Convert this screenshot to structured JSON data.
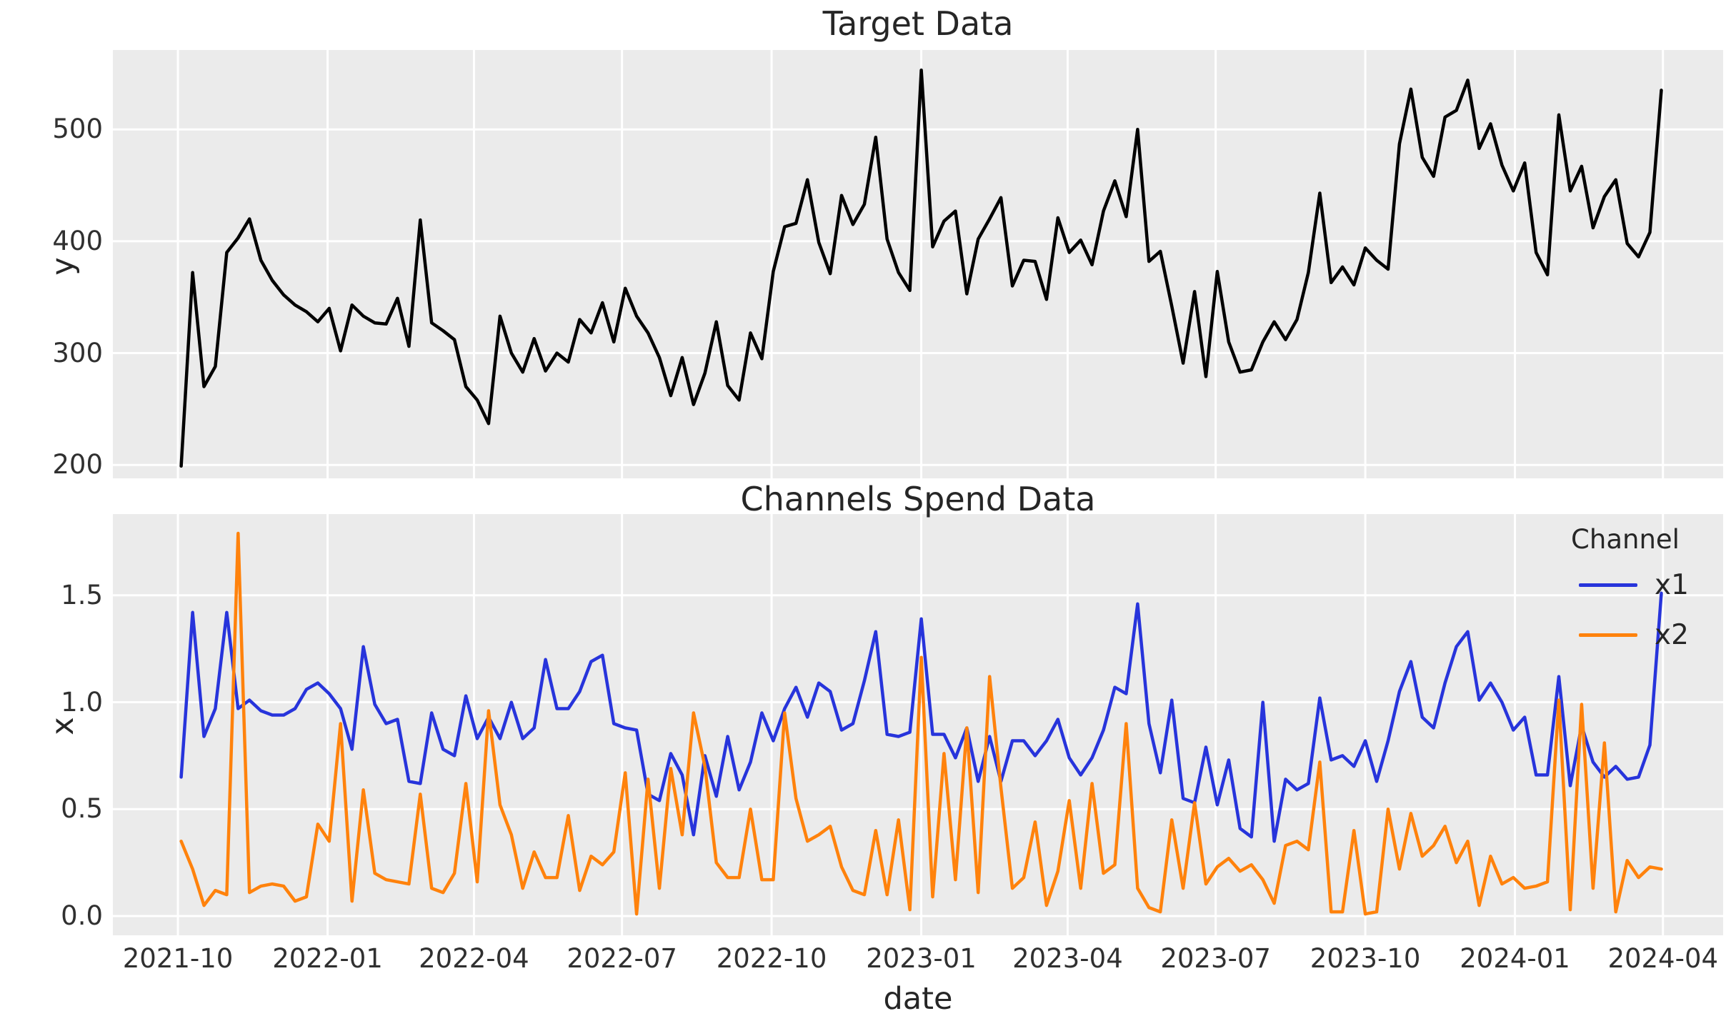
{
  "figure": {
    "background": "#ffffff",
    "plot_background": "#ebebeb",
    "grid_color": "#ffffff",
    "title_color": "#262626",
    "tick_color": "#303030"
  },
  "x_axis": {
    "label": "date",
    "start": "2021-10-03",
    "step_days": 7,
    "n_points": 131,
    "xlim": [
      "2021-08-22",
      "2024-05-08"
    ],
    "ticks": [
      {
        "label": "2021-10",
        "date": "2021-10-01"
      },
      {
        "label": "2022-01",
        "date": "2022-01-01"
      },
      {
        "label": "2022-04",
        "date": "2022-04-01"
      },
      {
        "label": "2022-07",
        "date": "2022-07-01"
      },
      {
        "label": "2022-10",
        "date": "2022-10-01"
      },
      {
        "label": "2023-01",
        "date": "2023-01-01"
      },
      {
        "label": "2023-04",
        "date": "2023-04-01"
      },
      {
        "label": "2023-07",
        "date": "2023-07-01"
      },
      {
        "label": "2023-10",
        "date": "2023-10-01"
      },
      {
        "label": "2024-01",
        "date": "2024-01-01"
      },
      {
        "label": "2024-04",
        "date": "2024-04-01"
      }
    ]
  },
  "chart_data": [
    {
      "type": "line",
      "title": "Target Data",
      "ylabel": "y",
      "xlabel": "date",
      "ylim": [
        188,
        571
      ],
      "yticks": [
        200,
        300,
        400,
        500
      ],
      "ytick_labels": [
        "200",
        "300",
        "400",
        "500"
      ],
      "grid": true,
      "legend": null,
      "x_frequency": "weekly",
      "series": [
        {
          "name": "y",
          "color": "#000000",
          "values": [
            199,
            372,
            270,
            288,
            390,
            403,
            420,
            383,
            365,
            352,
            343,
            337,
            328,
            340,
            302,
            343,
            333,
            327,
            326,
            349,
            306,
            419,
            327,
            320,
            312,
            270,
            258,
            237,
            333,
            300,
            283,
            313,
            284,
            300,
            292,
            330,
            318,
            345,
            310,
            358,
            333,
            318,
            296,
            262,
            296,
            254,
            282,
            328,
            271,
            258,
            318,
            295,
            373,
            413,
            416,
            455,
            399,
            371,
            441,
            415,
            433,
            493,
            402,
            372,
            356,
            553,
            395,
            418,
            427,
            353,
            402,
            420,
            439,
            360,
            383,
            382,
            348,
            421,
            390,
            401,
            379,
            427,
            454,
            422,
            500,
            382,
            391,
            342,
            291,
            355,
            279,
            373,
            310,
            283,
            285,
            310,
            328,
            312,
            330,
            372,
            443,
            363,
            377,
            361,
            394,
            383,
            375,
            487,
            536,
            475,
            458,
            511,
            517,
            544,
            483,
            505,
            468,
            445,
            470,
            390,
            370,
            513,
            445,
            467,
            412,
            440,
            455,
            398,
            386,
            408,
            535
          ]
        }
      ]
    },
    {
      "type": "line",
      "title": "Channels Spend Data",
      "ylabel": "x",
      "xlabel": "date",
      "ylim": [
        -0.09,
        1.88
      ],
      "yticks": [
        0.0,
        0.5,
        1.0,
        1.5
      ],
      "ytick_labels": [
        "0.0",
        "0.5",
        "1.0",
        "1.5"
      ],
      "grid": true,
      "legend": {
        "title": "Channel",
        "position": "upper right"
      },
      "x_frequency": "weekly",
      "series": [
        {
          "name": "x1",
          "color": "#2734db",
          "values": [
            0.65,
            1.42,
            0.84,
            0.97,
            1.42,
            0.97,
            1.01,
            0.96,
            0.94,
            0.94,
            0.97,
            1.06,
            1.09,
            1.04,
            0.97,
            0.78,
            1.26,
            0.99,
            0.9,
            0.92,
            0.63,
            0.62,
            0.95,
            0.78,
            0.75,
            1.03,
            0.83,
            0.93,
            0.83,
            1.0,
            0.83,
            0.88,
            1.2,
            0.97,
            0.97,
            1.05,
            1.19,
            1.22,
            0.9,
            0.88,
            0.87,
            0.57,
            0.54,
            0.76,
            0.66,
            0.38,
            0.75,
            0.56,
            0.84,
            0.59,
            0.72,
            0.95,
            0.82,
            0.97,
            1.07,
            0.93,
            1.09,
            1.05,
            0.87,
            0.9,
            1.1,
            1.33,
            0.85,
            0.84,
            0.86,
            1.39,
            0.85,
            0.85,
            0.74,
            0.88,
            0.63,
            0.84,
            0.63,
            0.82,
            0.82,
            0.75,
            0.82,
            0.92,
            0.74,
            0.66,
            0.74,
            0.87,
            1.07,
            1.04,
            1.46,
            0.9,
            0.67,
            1.01,
            0.55,
            0.53,
            0.79,
            0.52,
            0.73,
            0.41,
            0.37,
            1.0,
            0.35,
            0.64,
            0.59,
            0.62,
            1.02,
            0.73,
            0.75,
            0.7,
            0.82,
            0.63,
            0.82,
            1.05,
            1.19,
            0.93,
            0.88,
            1.09,
            1.26,
            1.33,
            1.01,
            1.09,
            1.0,
            0.87,
            0.93,
            0.66,
            0.66,
            1.12,
            0.61,
            0.89,
            0.72,
            0.65,
            0.7,
            0.64,
            0.65,
            0.8,
            1.51
          ]
        },
        {
          "name": "x2",
          "color": "#ff820c",
          "values": [
            0.35,
            0.22,
            0.05,
            0.12,
            0.1,
            1.79,
            0.11,
            0.14,
            0.15,
            0.14,
            0.07,
            0.09,
            0.43,
            0.35,
            0.9,
            0.07,
            0.59,
            0.2,
            0.17,
            0.16,
            0.15,
            0.57,
            0.13,
            0.11,
            0.2,
            0.62,
            0.16,
            0.96,
            0.52,
            0.38,
            0.13,
            0.3,
            0.18,
            0.18,
            0.47,
            0.12,
            0.28,
            0.24,
            0.3,
            0.67,
            0.01,
            0.64,
            0.13,
            0.69,
            0.38,
            0.95,
            0.7,
            0.25,
            0.18,
            0.18,
            0.5,
            0.17,
            0.17,
            0.95,
            0.55,
            0.35,
            0.38,
            0.42,
            0.23,
            0.12,
            0.1,
            0.4,
            0.1,
            0.45,
            0.03,
            1.21,
            0.09,
            0.76,
            0.17,
            0.88,
            0.11,
            1.12,
            0.6,
            0.13,
            0.18,
            0.44,
            0.05,
            0.21,
            0.54,
            0.13,
            0.62,
            0.2,
            0.24,
            0.9,
            0.13,
            0.04,
            0.02,
            0.45,
            0.13,
            0.53,
            0.15,
            0.23,
            0.27,
            0.21,
            0.24,
            0.17,
            0.06,
            0.33,
            0.35,
            0.31,
            0.72,
            0.02,
            0.02,
            0.4,
            0.01,
            0.02,
            0.5,
            0.22,
            0.48,
            0.28,
            0.33,
            0.42,
            0.25,
            0.35,
            0.05,
            0.28,
            0.15,
            0.18,
            0.13,
            0.14,
            0.16,
            1.01,
            0.03,
            0.99,
            0.13,
            0.81,
            0.02,
            0.26,
            0.18,
            0.23,
            0.22
          ]
        }
      ]
    }
  ]
}
